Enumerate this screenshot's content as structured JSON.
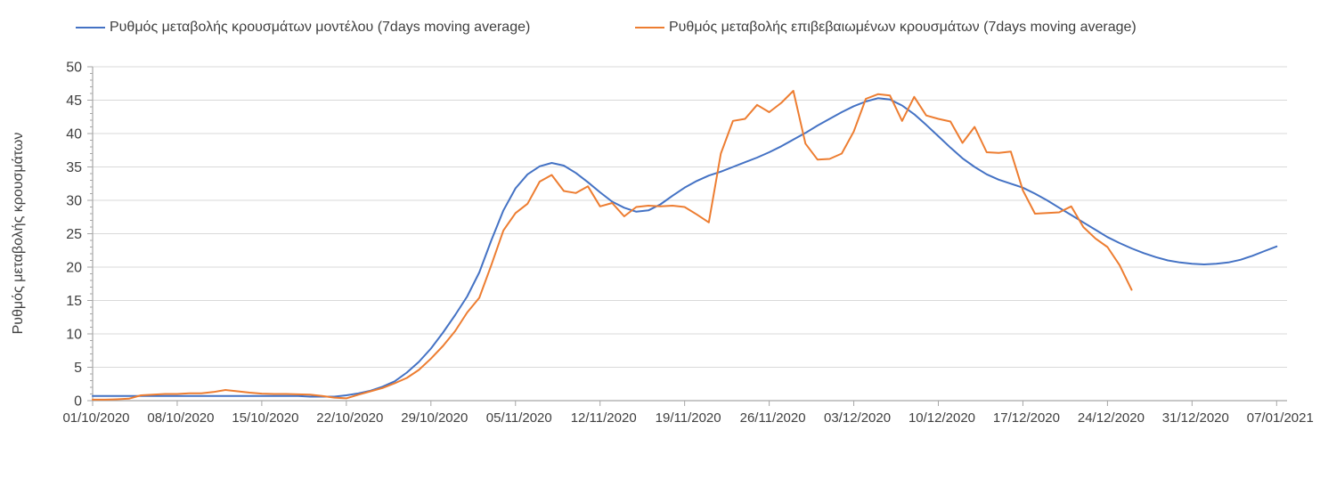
{
  "chart_data": {
    "type": "line",
    "title": "",
    "xlabel": "",
    "ylabel": "Ρυθμός μεταβολής κρουσμάτων",
    "ylim": [
      0,
      50
    ],
    "y_ticks": [
      0,
      5,
      10,
      15,
      20,
      25,
      30,
      35,
      40,
      45,
      50
    ],
    "y_minor_tick_step": 1,
    "grid": "horizontal-only",
    "legend_position": "top",
    "x_tick_labels": [
      "01/10/2020",
      "08/10/2020",
      "15/10/2020",
      "22/10/2020",
      "29/10/2020",
      "05/11/2020",
      "12/11/2020",
      "19/11/2020",
      "26/11/2020",
      "03/12/2020",
      "10/12/2020",
      "17/12/2020",
      "24/12/2020",
      "31/12/2020",
      "07/01/2021"
    ],
    "x_tick_days": [
      0,
      7,
      14,
      21,
      28,
      35,
      42,
      49,
      56,
      63,
      70,
      77,
      84,
      91,
      98
    ],
    "x_domain_days": [
      0,
      98
    ],
    "series": [
      {
        "name": "Ρυθμός μεταβολής κρουσμάτων μοντέλου (7days moving average)",
        "color": "#4472c4",
        "start_day": 0,
        "values": [
          0.7,
          0.7,
          0.7,
          0.7,
          0.7,
          0.7,
          0.7,
          0.7,
          0.7,
          0.7,
          0.7,
          0.7,
          0.7,
          0.7,
          0.7,
          0.7,
          0.7,
          0.7,
          0.6,
          0.6,
          0.6,
          0.8,
          1.1,
          1.5,
          2.1,
          2.9,
          4.2,
          5.8,
          7.8,
          10.2,
          12.8,
          15.6,
          19.2,
          24.0,
          28.5,
          31.8,
          33.9,
          35.1,
          35.6,
          35.2,
          34.1,
          32.7,
          31.2,
          29.8,
          28.9,
          28.3,
          28.5,
          29.4,
          30.7,
          31.9,
          32.9,
          33.7,
          34.3,
          35.0,
          35.7,
          36.4,
          37.2,
          38.1,
          39.1,
          40.1,
          41.2,
          42.2,
          43.2,
          44.1,
          44.8,
          45.3,
          45.1,
          44.2,
          42.9,
          41.3,
          39.6,
          37.9,
          36.3,
          35.0,
          33.9,
          33.1,
          32.5,
          31.9,
          31.0,
          30.0,
          28.9,
          27.8,
          26.7,
          25.6,
          24.5,
          23.6,
          22.8,
          22.1,
          21.5,
          21.0,
          20.7,
          20.5,
          20.4,
          20.5,
          20.7,
          21.1,
          21.7,
          22.4,
          23.1
        ]
      },
      {
        "name": "Ρυθμός μεταβολής επιβεβαιωμένων κρουσμάτων (7days moving average)",
        "color": "#ed7d31",
        "start_day": 0,
        "values": [
          0.15,
          0.15,
          0.2,
          0.3,
          0.8,
          0.9,
          1.0,
          1.0,
          1.1,
          1.1,
          1.3,
          1.6,
          1.4,
          1.2,
          1.05,
          1.0,
          1.0,
          0.95,
          0.9,
          0.7,
          0.45,
          0.35,
          0.9,
          1.4,
          1.9,
          2.6,
          3.4,
          4.6,
          6.3,
          8.2,
          10.4,
          13.2,
          15.4,
          20.3,
          25.5,
          28.1,
          29.5,
          32.8,
          33.8,
          31.4,
          31.1,
          32.1,
          29.1,
          29.6,
          27.6,
          29.0,
          29.2,
          29.1,
          29.2,
          29.0,
          27.9,
          26.7,
          37.0,
          41.9,
          42.2,
          44.3,
          43.2,
          44.6,
          46.4,
          38.5,
          36.1,
          36.2,
          37.0,
          40.3,
          45.2,
          45.9,
          45.7,
          41.9,
          45.5,
          42.7,
          42.2,
          41.8,
          38.6,
          41.0,
          37.2,
          37.1,
          37.3,
          31.5,
          28.0,
          28.1,
          28.2,
          29.1,
          26.0,
          24.3,
          23.0,
          20.3,
          16.6
        ]
      }
    ],
    "colors": {
      "grid": "#d9d9d9",
      "axis": "#a6a6a6",
      "tick_text": "#404040",
      "legend_text": "#3f3f3f",
      "background": "#ffffff"
    }
  }
}
